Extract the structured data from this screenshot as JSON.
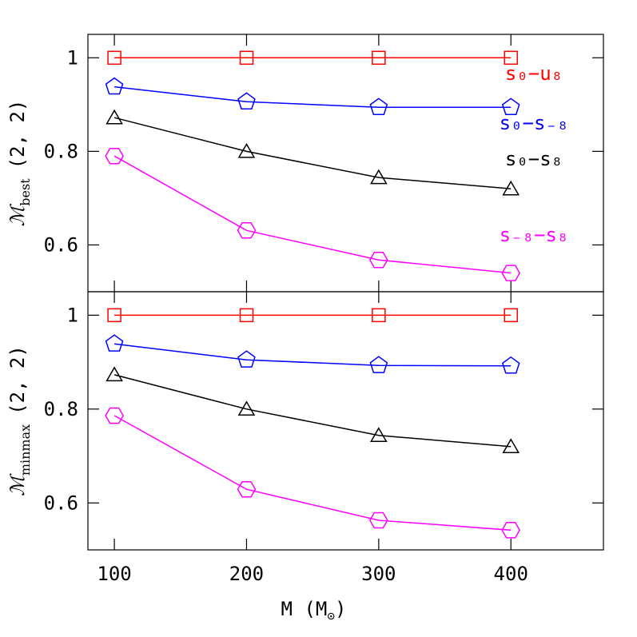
{
  "chart_data": [
    {
      "type": "line",
      "x": [
        100,
        200,
        300,
        400
      ],
      "xlim": [
        80,
        470
      ],
      "xticks": [
        100,
        200,
        300,
        400
      ],
      "show_xtick_labels": false,
      "ylim": [
        0.5,
        1.05
      ],
      "yticks": [
        0.6,
        0.8,
        1
      ],
      "ylabel": "ℳ",
      "ylabel_subscript": "best",
      "ylabel_suffix": "(2, 2)",
      "legend": true,
      "series": [
        {
          "name": "s₀−u₈",
          "color": "#ff0000",
          "marker": "square",
          "values": [
            1,
            1,
            1,
            1
          ]
        },
        {
          "name": "s₀−s₋₈",
          "color": "#0000ff",
          "marker": "pentagon",
          "values": [
            0.938,
            0.906,
            0.894,
            0.894
          ]
        },
        {
          "name": "s₀−s₈",
          "color": "#000000",
          "marker": "triangle",
          "values": [
            0.872,
            0.8,
            0.744,
            0.72
          ]
        },
        {
          "name": "s₋₈−s₈",
          "color": "#ff00ff",
          "marker": "hexagon",
          "values": [
            0.79,
            0.631,
            0.568,
            0.54
          ]
        }
      ]
    },
    {
      "type": "line",
      "x": [
        100,
        200,
        300,
        400
      ],
      "xlim": [
        80,
        470
      ],
      "xticks": [
        100,
        200,
        300,
        400
      ],
      "show_xtick_labels": true,
      "xlabel": "M (M",
      "xlabel_subscript": "⊙",
      "xlabel_suffix": ")",
      "ylim": [
        0.5,
        1.05
      ],
      "yticks": [
        0.6,
        0.8,
        1
      ],
      "ylabel": "ℳ",
      "ylabel_subscript": "minmax",
      "ylabel_suffix": "(2, 2)",
      "legend": false,
      "series": [
        {
          "color": "#ff0000",
          "marker": "square",
          "values": [
            1,
            1,
            1,
            1
          ]
        },
        {
          "color": "#0000ff",
          "marker": "pentagon",
          "values": [
            0.939,
            0.905,
            0.893,
            0.892
          ]
        },
        {
          "color": "#000000",
          "marker": "triangle",
          "values": [
            0.873,
            0.8,
            0.744,
            0.72
          ]
        },
        {
          "color": "#ff00ff",
          "marker": "hexagon",
          "values": [
            0.786,
            0.629,
            0.563,
            0.542
          ]
        }
      ]
    }
  ]
}
